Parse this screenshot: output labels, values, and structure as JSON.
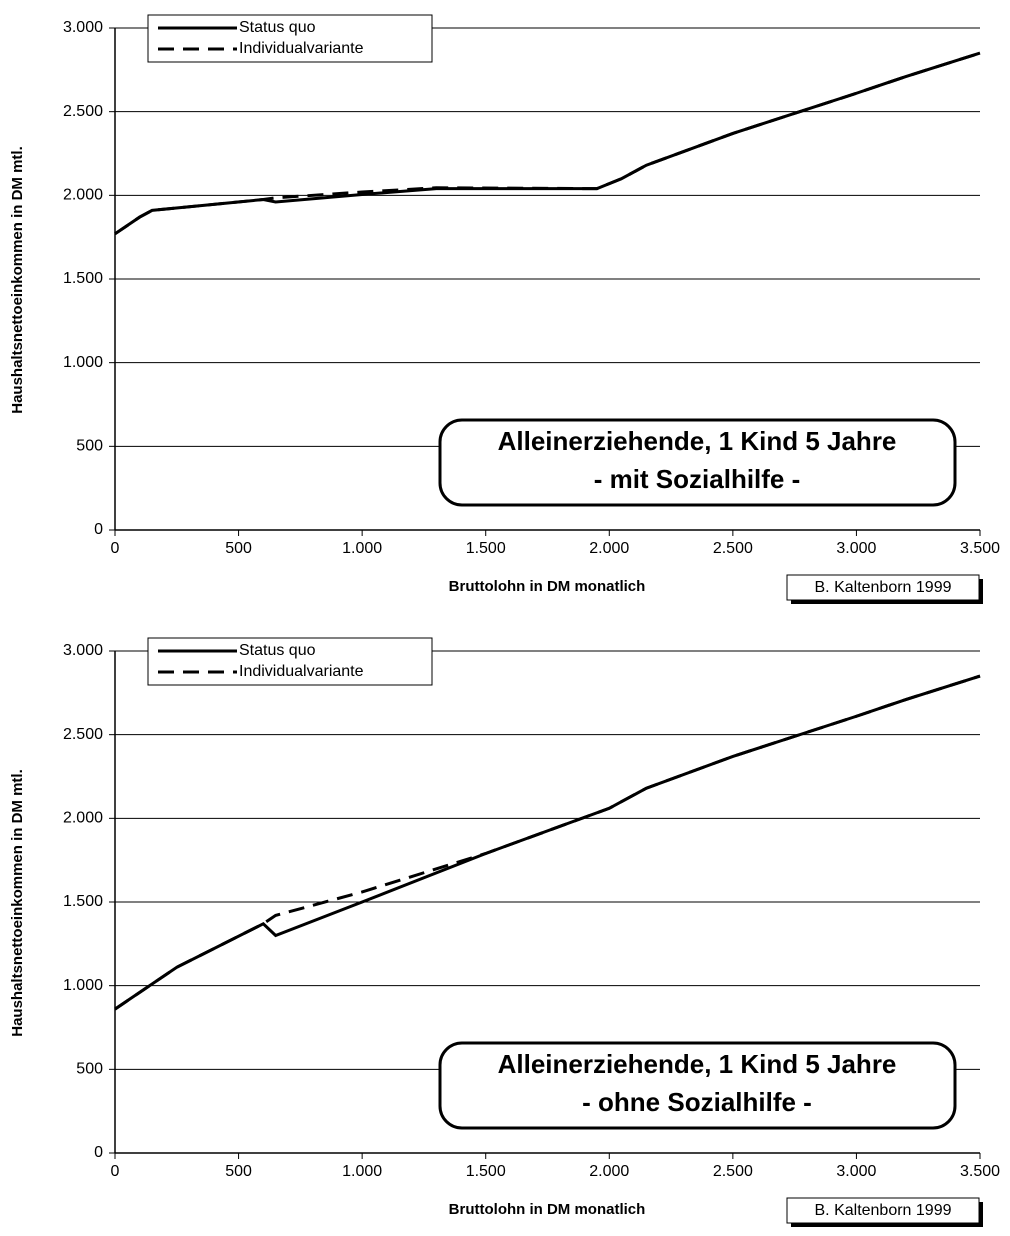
{
  "chart_data": [
    {
      "type": "line",
      "annotation": [
        "Alleinerziehende, 1 Kind 5 Jahre",
        "- mit Sozialhilfe -"
      ],
      "credit": "B. Kaltenborn 1999",
      "x_label": "Bruttolohn in DM monatlich",
      "y_label": "Haushaltsnettoeinkommen in DM mtl.",
      "x": [
        0,
        100,
        150,
        600,
        650,
        1000,
        1300,
        1950,
        2050,
        2150,
        2500,
        2750,
        3000,
        3200,
        3500
      ],
      "series": [
        {
          "name": "Status quo",
          "color": "#000000",
          "dash": false,
          "values": [
            1770,
            1870,
            1910,
            1975,
            1960,
            2005,
            2040,
            2040,
            2100,
            2180,
            2370,
            2490,
            2610,
            2710,
            2850
          ]
        },
        {
          "name": "Individualvariante",
          "color": "#000000",
          "dash": true,
          "values": [
            1770,
            1870,
            1910,
            1975,
            1985,
            2020,
            2045,
            2040,
            2100,
            2180,
            2370,
            2490,
            2610,
            2710,
            2850
          ]
        }
      ],
      "xlim": [
        0,
        3500
      ],
      "ylim": [
        0,
        3000
      ],
      "xticks": [
        0,
        500,
        {
          "value": 1000,
          "label": "1.000"
        },
        {
          "value": 1500,
          "label": "1.500"
        },
        {
          "value": 2000,
          "label": "2.000"
        },
        {
          "value": 2500,
          "label": "2.500"
        },
        {
          "value": 3000,
          "label": "3.000"
        },
        {
          "value": 3500,
          "label": "3.500"
        }
      ],
      "yticks": [
        0,
        500,
        {
          "value": 1000,
          "label": "1.000"
        },
        {
          "value": 1500,
          "label": "1.500"
        },
        {
          "value": 2000,
          "label": "2.000"
        },
        {
          "value": 2500,
          "label": "2.500"
        },
        {
          "value": 3000,
          "label": "3.000"
        }
      ],
      "grid": true,
      "legend": "top-left"
    },
    {
      "type": "line",
      "annotation": [
        "Alleinerziehende, 1 Kind 5 Jahre",
        "- ohne Sozialhilfe -"
      ],
      "credit": "B. Kaltenborn 1999",
      "x_label": "Bruttolohn in DM monatlich",
      "y_label": "Haushaltsnettoeinkommen in DM mtl.",
      "x": [
        0,
        250,
        600,
        650,
        1000,
        1500,
        2000,
        2050,
        2150,
        2500,
        3000,
        3200,
        3500
      ],
      "series": [
        {
          "name": "Status quo",
          "color": "#000000",
          "dash": false,
          "values": [
            860,
            1110,
            1370,
            1300,
            1500,
            1790,
            2060,
            2100,
            2180,
            2370,
            2610,
            2710,
            2850
          ]
        },
        {
          "name": "Individualvariante",
          "color": "#000000",
          "dash": true,
          "values": [
            860,
            1110,
            1370,
            1420,
            1560,
            1790,
            2060,
            2100,
            2180,
            2370,
            2610,
            2710,
            2850
          ]
        }
      ],
      "xlim": [
        0,
        3500
      ],
      "ylim": [
        0,
        3000
      ],
      "xticks": [
        0,
        500,
        {
          "value": 1000,
          "label": "1.000"
        },
        {
          "value": 1500,
          "label": "1.500"
        },
        {
          "value": 2000,
          "label": "2.000"
        },
        {
          "value": 2500,
          "label": "2.500"
        },
        {
          "value": 3000,
          "label": "3.000"
        },
        {
          "value": 3500,
          "label": "3.500"
        }
      ],
      "yticks": [
        0,
        500,
        {
          "value": 1000,
          "label": "1.000"
        },
        {
          "value": 1500,
          "label": "1.500"
        },
        {
          "value": 2000,
          "label": "2.000"
        },
        {
          "value": 2500,
          "label": "2.500"
        },
        {
          "value": 3000,
          "label": "3.000"
        }
      ],
      "grid": true,
      "legend": "top-left"
    }
  ]
}
